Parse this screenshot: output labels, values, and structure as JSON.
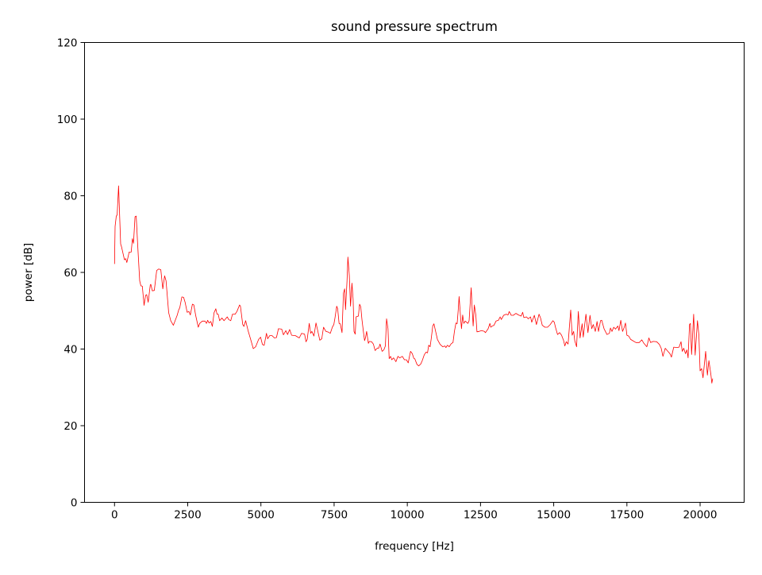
{
  "chart_data": {
    "type": "line",
    "title": "sound pressure spectrum",
    "xlabel": "frequency [Hz]",
    "ylabel": "power [dB]",
    "xlim": [
      -1024,
      21504
    ],
    "ylim": [
      0,
      120
    ],
    "xticks": [
      0,
      2500,
      5000,
      7500,
      10000,
      12500,
      15000,
      17500,
      20000
    ],
    "yticks": [
      0,
      20,
      40,
      60,
      80,
      100,
      120
    ],
    "grid": false,
    "line_color": "#ff0000",
    "series": [
      {
        "x": [
          0,
          20,
          60,
          90,
          140,
          210,
          240,
          340,
          380,
          420,
          500,
          570,
          610,
          650,
          700,
          740,
          790,
          860,
          900,
          950,
          1010,
          1060,
          1100,
          1150,
          1220,
          1240,
          1290,
          1360,
          1440,
          1510,
          1580,
          1650,
          1710,
          1760,
          1850,
          1920,
          2010,
          2140,
          2190,
          2230,
          2300,
          2360,
          2410,
          2480,
          2540,
          2590,
          2660,
          2710,
          2770,
          2860,
          2910,
          3000,
          3090,
          3140,
          3180,
          3230,
          3290,
          3340,
          3400,
          3460,
          3500,
          3540,
          3590,
          3670,
          3740,
          3850,
          3900,
          3970,
          4030,
          4120,
          4180,
          4270,
          4300,
          4380,
          4420,
          4480,
          4570,
          4650,
          4740,
          4820,
          4920,
          4990,
          5050,
          5110,
          5190,
          5230,
          5300,
          5380,
          5460,
          5530,
          5600,
          5710,
          5770,
          5850,
          5910,
          5980,
          6050,
          6180,
          6310,
          6390,
          6490,
          6540,
          6580,
          6650,
          6700,
          6740,
          6810,
          6880,
          6950,
          7010,
          7080,
          7140,
          7220,
          7310,
          7370,
          7440,
          7490,
          7530,
          7590,
          7620,
          7670,
          7710,
          7770,
          7820,
          7860,
          7890,
          7940,
          7970,
          8020,
          8060,
          8110,
          8150,
          8180,
          8220,
          8250,
          8330,
          8370,
          8410,
          8450,
          8500,
          8540,
          8570,
          8610,
          8670,
          8700,
          8780,
          8840,
          8900,
          8980,
          9020,
          9070,
          9140,
          9200,
          9250,
          9290,
          9340,
          9380,
          9430,
          9470,
          9530,
          9610,
          9680,
          9740,
          9830,
          9900,
          9970,
          10030,
          10070,
          10110,
          10170,
          10220,
          10260,
          10330,
          10390,
          10460,
          10510,
          10580,
          10640,
          10690,
          10730,
          10780,
          10820,
          10870,
          10910,
          10960,
          11030,
          11120,
          11210,
          11280,
          11320,
          11370,
          11430,
          11500,
          11560,
          11610,
          11660,
          11700,
          11740,
          11770,
          11820,
          11850,
          11890,
          11930,
          11980,
          12020,
          12070,
          12110,
          12180,
          12210,
          12250,
          12290,
          12340,
          12380,
          12450,
          12540,
          12630,
          12670,
          12760,
          12820,
          12850,
          12900,
          12960,
          13030,
          13110,
          13170,
          13210,
          13290,
          13380,
          13440,
          13480,
          13550,
          13620,
          13710,
          13800,
          13890,
          13940,
          13980,
          14070,
          14130,
          14210,
          14250,
          14340,
          14410,
          14500,
          14550,
          14610,
          14700,
          14790,
          14880,
          14970,
          15020,
          15060,
          15130,
          15200,
          15270,
          15340,
          15380,
          15430,
          15490,
          15580,
          15630,
          15680,
          15720,
          15780,
          15840,
          15900,
          15970,
          16010,
          16100,
          16170,
          16240,
          16300,
          16350,
          16420,
          16480,
          16530,
          16600,
          16640,
          16720,
          16820,
          16900,
          16940,
          16990,
          17050,
          17110,
          17190,
          17230,
          17290,
          17350,
          17400,
          17450,
          17500,
          17560,
          17630,
          17720,
          17810,
          17920,
          18010,
          18080,
          18180,
          18250,
          18310,
          18400,
          18520,
          18610,
          18670,
          18730,
          18810,
          18900,
          18970,
          19020,
          19100,
          19210,
          19280,
          19350,
          19390,
          19440,
          19500,
          19550,
          19590,
          19640,
          19670,
          19710,
          19780,
          19830,
          19910,
          19960,
          20000,
          20050,
          20100,
          20190,
          20250,
          20300,
          20370,
          20400,
          20430
        ],
        "y": [
          62.2,
          72,
          74.7,
          75,
          82.6,
          67.4,
          66.7,
          63.3,
          63.6,
          62.6,
          65.3,
          65.3,
          68.8,
          67.6,
          74.5,
          74.7,
          67.4,
          57.8,
          56.5,
          56.4,
          51.4,
          54,
          54.2,
          52.2,
          56.7,
          56.9,
          55.2,
          55.3,
          60.5,
          60.9,
          60.7,
          55.7,
          59.1,
          57.8,
          49.5,
          47.4,
          46.2,
          48.8,
          50.2,
          50.8,
          53.6,
          53.5,
          52.2,
          49.6,
          49.8,
          48.9,
          51.7,
          51.5,
          48.8,
          45.7,
          46.7,
          47.3,
          47.3,
          46.7,
          47.5,
          46.8,
          47.2,
          45.9,
          49.5,
          50.5,
          49.1,
          49.1,
          47.4,
          48.1,
          47.4,
          48.4,
          47.7,
          47.4,
          49.1,
          49.1,
          49.8,
          51.5,
          51.2,
          46.4,
          45.9,
          47.4,
          44.6,
          42.5,
          40.1,
          40.6,
          42.5,
          43.1,
          41.2,
          41,
          44.1,
          42.7,
          43.5,
          43.5,
          42.9,
          43,
          45.3,
          45.2,
          43.7,
          44.8,
          43.8,
          45.1,
          43.6,
          43.5,
          42.9,
          44.1,
          43.9,
          41.9,
          42.5,
          46.7,
          44.1,
          44.6,
          43.4,
          46.8,
          44.5,
          42.3,
          42.7,
          45.7,
          44.6,
          44.4,
          44.1,
          45.7,
          46.4,
          48.1,
          51.2,
          50.5,
          46.7,
          46.6,
          44.3,
          54.6,
          55.7,
          50.3,
          57.8,
          64,
          59.1,
          51.2,
          57.2,
          52.9,
          44.6,
          43.9,
          48.4,
          48.6,
          51.7,
          51,
          47.7,
          44.6,
          42.2,
          42.9,
          44.6,
          41.5,
          42,
          41.9,
          41.3,
          39.6,
          40.3,
          40.2,
          41.3,
          39.4,
          39.8,
          40.8,
          47.9,
          45.3,
          37.5,
          38.1,
          37.2,
          37.7,
          36.7,
          38.1,
          37.7,
          38.1,
          37.2,
          37.2,
          36.4,
          37.9,
          39.4,
          38.8,
          37.6,
          37.4,
          36,
          35.6,
          36.1,
          37,
          38.5,
          39.2,
          39,
          41,
          40.6,
          42.9,
          46,
          46.6,
          44.8,
          42.5,
          41.2,
          40.6,
          40.8,
          40.4,
          41,
          40.6,
          41.4,
          41.7,
          44.6,
          46.8,
          46.6,
          50.2,
          53.7,
          48.1,
          45.3,
          48.9,
          46.7,
          47.3,
          47,
          46.7,
          47.4,
          56,
          51.2,
          46,
          51.5,
          48.8,
          44.5,
          44.6,
          44.8,
          44.6,
          44.3,
          45.3,
          46.7,
          45.7,
          46,
          46.2,
          47.3,
          47.5,
          48.4,
          47.7,
          48.8,
          49.1,
          48.9,
          49.8,
          48.8,
          48.8,
          49.3,
          48.9,
          48.6,
          49.6,
          48.2,
          48.4,
          47.9,
          48.4,
          47,
          48.8,
          46.4,
          49.1,
          48.1,
          46.2,
          45.7,
          45.7,
          46.4,
          47.4,
          47,
          45.7,
          43.8,
          44.3,
          43.6,
          42.2,
          40.8,
          41.9,
          41.3,
          50.2,
          43.6,
          44.6,
          42.2,
          40.6,
          49.8,
          42.9,
          46.6,
          43.1,
          49.1,
          44.3,
          48.8,
          45.3,
          46.4,
          44.6,
          47.2,
          44.6,
          47.4,
          47.5,
          45.3,
          43.8,
          44.1,
          45.5,
          44.6,
          45.7,
          45.2,
          46,
          44.8,
          47.5,
          44.6,
          45.5,
          46.8,
          43.6,
          43.4,
          42.5,
          42.1,
          41.7,
          41.7,
          42.4,
          41.5,
          40.6,
          42.9,
          41.7,
          42,
          41.9,
          41.2,
          40.2,
          38.1,
          40.2,
          39.4,
          38.8,
          37.9,
          40.5,
          40.4,
          40.5,
          41.9,
          39.4,
          40.2,
          38.8,
          39.8,
          37.7,
          46.4,
          46.7,
          38.6,
          49.1,
          38.4,
          47.4,
          43.6,
          34.3,
          34.9,
          32.5,
          39.4,
          33.2,
          37,
          33.2,
          31.1,
          32.3
        ]
      }
    ]
  }
}
